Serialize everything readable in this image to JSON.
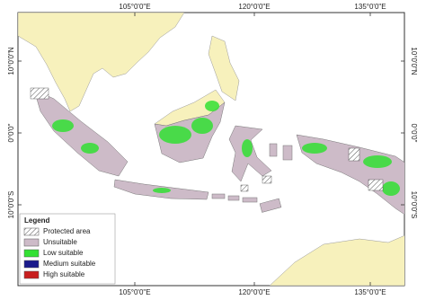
{
  "map": {
    "graticule": {
      "top": [
        "105°0'0\"E",
        "120°0'0\"E",
        "135°0'0\"E"
      ],
      "bottom": [
        "105°0'0\"E",
        "120°0'0\"E",
        "135°0'0\"E"
      ],
      "left": [
        "10°0'0\"N",
        "0°0'0\"",
        "10°0'0\"S"
      ],
      "right": [
        "10°0'0\"N",
        "0°0'0\"",
        "10°0'0\"S"
      ]
    },
    "legend": {
      "title": "Legend",
      "items": [
        {
          "label": "Protected area",
          "color": "hatch"
        },
        {
          "label": "Unsuitable",
          "color": "#cdbbc8"
        },
        {
          "label": "Low suitable",
          "color": "#33e033"
        },
        {
          "label": "Medium suitable",
          "color": "#1a1a8c"
        },
        {
          "label": "High suitable",
          "color": "#c81e1e"
        }
      ]
    }
  }
}
